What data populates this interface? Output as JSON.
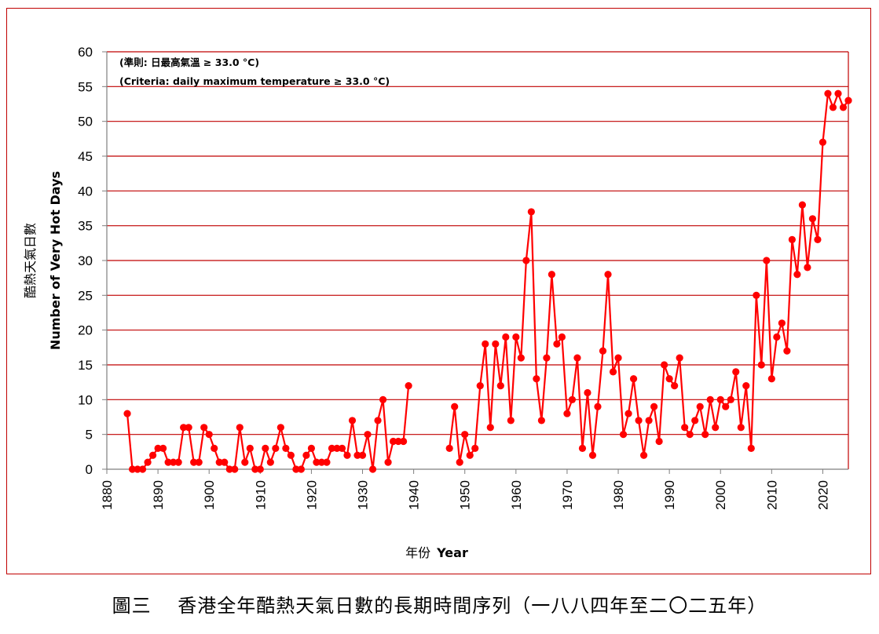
{
  "caption": "圖三　 香港全年酷熱天氣日數的長期時間序列（一八八四年至二〇二五年）",
  "chart_data": {
    "type": "line",
    "criteria_zh": "(準則: 日最高氣溫 ≥ 33.0 °C)",
    "criteria_en": "(Criteria: daily maximum temperature ≥ 33.0 °C)",
    "xlabel_zh": "年份",
    "xlabel_en": "Year",
    "ylabel_zh": "酷熱天氣日數",
    "ylabel_en": "Number of Very Hot Days",
    "xlim": [
      1880,
      2025
    ],
    "ylim": [
      0,
      60
    ],
    "x_ticks": [
      1880,
      1890,
      1900,
      1910,
      1920,
      1930,
      1940,
      1950,
      1960,
      1970,
      1980,
      1990,
      2000,
      2010,
      2020
    ],
    "y_ticks": [
      0,
      5,
      10,
      15,
      20,
      25,
      30,
      35,
      40,
      45,
      50,
      55,
      60
    ],
    "colors": {
      "series": "#ff0000",
      "grid": "#c00000",
      "frame": "#c00000"
    },
    "series": [
      {
        "name": "Number of Very Hot Days",
        "segments": [
          [
            [
              1884,
              8
            ],
            [
              1885,
              0
            ],
            [
              1886,
              0
            ],
            [
              1887,
              0
            ],
            [
              1888,
              1
            ],
            [
              1889,
              2
            ],
            [
              1890,
              3
            ],
            [
              1891,
              3
            ],
            [
              1892,
              1
            ],
            [
              1893,
              1
            ],
            [
              1894,
              1
            ],
            [
              1895,
              6
            ],
            [
              1896,
              6
            ],
            [
              1897,
              1
            ],
            [
              1898,
              1
            ],
            [
              1899,
              6
            ],
            [
              1900,
              5
            ],
            [
              1901,
              3
            ],
            [
              1902,
              1
            ],
            [
              1903,
              1
            ],
            [
              1904,
              0
            ],
            [
              1905,
              0
            ],
            [
              1906,
              6
            ],
            [
              1907,
              1
            ],
            [
              1908,
              3
            ],
            [
              1909,
              0
            ],
            [
              1910,
              0
            ],
            [
              1911,
              3
            ],
            [
              1912,
              1
            ],
            [
              1913,
              3
            ],
            [
              1914,
              6
            ],
            [
              1915,
              3
            ],
            [
              1916,
              2
            ],
            [
              1917,
              0
            ],
            [
              1918,
              0
            ],
            [
              1919,
              2
            ],
            [
              1920,
              3
            ],
            [
              1921,
              1
            ],
            [
              1922,
              1
            ],
            [
              1923,
              1
            ],
            [
              1924,
              3
            ],
            [
              1925,
              3
            ],
            [
              1926,
              3
            ],
            [
              1927,
              2
            ],
            [
              1928,
              7
            ],
            [
              1929,
              2
            ],
            [
              1930,
              2
            ],
            [
              1931,
              5
            ],
            [
              1932,
              0
            ],
            [
              1933,
              7
            ],
            [
              1934,
              10
            ],
            [
              1935,
              1
            ],
            [
              1936,
              4
            ],
            [
              1937,
              4
            ],
            [
              1938,
              4
            ],
            [
              1939,
              12
            ]
          ],
          [
            [
              1947,
              3
            ],
            [
              1948,
              9
            ],
            [
              1949,
              1
            ],
            [
              1950,
              5
            ],
            [
              1951,
              2
            ],
            [
              1952,
              3
            ],
            [
              1953,
              12
            ],
            [
              1954,
              18
            ],
            [
              1955,
              6
            ],
            [
              1956,
              18
            ],
            [
              1957,
              12
            ],
            [
              1958,
              19
            ],
            [
              1959,
              7
            ],
            [
              1960,
              19
            ],
            [
              1961,
              16
            ],
            [
              1962,
              30
            ],
            [
              1963,
              37
            ],
            [
              1964,
              13
            ],
            [
              1965,
              7
            ],
            [
              1966,
              16
            ],
            [
              1967,
              28
            ],
            [
              1968,
              18
            ],
            [
              1969,
              19
            ],
            [
              1970,
              8
            ],
            [
              1971,
              10
            ],
            [
              1972,
              16
            ],
            [
              1973,
              3
            ],
            [
              1974,
              11
            ],
            [
              1975,
              2
            ],
            [
              1976,
              9
            ],
            [
              1977,
              17
            ],
            [
              1978,
              28
            ],
            [
              1979,
              14
            ],
            [
              1980,
              16
            ],
            [
              1981,
              5
            ],
            [
              1982,
              8
            ],
            [
              1983,
              13
            ],
            [
              1984,
              7
            ],
            [
              1985,
              2
            ],
            [
              1986,
              7
            ],
            [
              1987,
              9
            ],
            [
              1988,
              4
            ],
            [
              1989,
              15
            ],
            [
              1990,
              13
            ],
            [
              1991,
              12
            ],
            [
              1992,
              16
            ],
            [
              1993,
              6
            ],
            [
              1994,
              5
            ],
            [
              1995,
              7
            ],
            [
              1996,
              9
            ],
            [
              1997,
              5
            ],
            [
              1998,
              10
            ],
            [
              1999,
              6
            ],
            [
              2000,
              10
            ],
            [
              2001,
              9
            ],
            [
              2002,
              10
            ],
            [
              2003,
              14
            ],
            [
              2004,
              6
            ],
            [
              2005,
              12
            ],
            [
              2006,
              3
            ],
            [
              2007,
              25
            ],
            [
              2008,
              15
            ],
            [
              2009,
              30
            ],
            [
              2010,
              13
            ],
            [
              2011,
              19
            ],
            [
              2012,
              21
            ],
            [
              2013,
              17
            ],
            [
              2014,
              33
            ],
            [
              2015,
              28
            ],
            [
              2016,
              38
            ],
            [
              2017,
              29
            ],
            [
              2018,
              36
            ],
            [
              2019,
              33
            ],
            [
              2020,
              47
            ],
            [
              2021,
              54
            ],
            [
              2022,
              52
            ],
            [
              2023,
              54
            ],
            [
              2024,
              52
            ],
            [
              2025,
              53
            ]
          ]
        ]
      }
    ]
  }
}
